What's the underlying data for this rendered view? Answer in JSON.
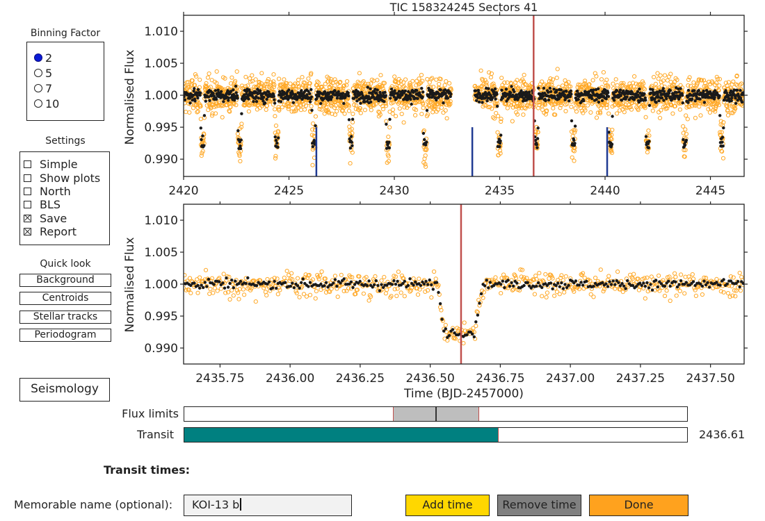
{
  "header": {
    "title": "TIC 158324245     Sectors 41"
  },
  "binning": {
    "title": "Binning Factor",
    "options": [
      {
        "label": "2",
        "selected": true
      },
      {
        "label": "5",
        "selected": false
      },
      {
        "label": "7",
        "selected": false
      },
      {
        "label": "10",
        "selected": false
      }
    ]
  },
  "settings": {
    "title": "Settings",
    "options": [
      {
        "label": "Simple",
        "checked": false
      },
      {
        "label": "Show plots",
        "checked": false
      },
      {
        "label": "North",
        "checked": false
      },
      {
        "label": "BLS",
        "checked": false
      },
      {
        "label": "Save",
        "checked": true
      },
      {
        "label": "Report",
        "checked": true
      }
    ]
  },
  "quicklook": {
    "title": "Quick look",
    "buttons": [
      "Background",
      "Centroids",
      "Stellar tracks",
      "Periodogram"
    ]
  },
  "seismology": {
    "label": "Seismology"
  },
  "sliders": {
    "flux_label": "Flux limits",
    "flux_fill_range": [
      0.415,
      0.585
    ],
    "flux_marker": 0.5,
    "transit_label": "Transit",
    "transit_value": "2436.61",
    "transit_fraction": 0.625
  },
  "transit_times": {
    "label": "Transit times:"
  },
  "name_field": {
    "label": "Memorable name (optional):",
    "value": "KOI-13 b"
  },
  "actions": {
    "add": "Add time",
    "remove": "Remove time",
    "done": "Done"
  },
  "colors": {
    "raw": "#ffa826",
    "binned": "#1a1a1a",
    "marker": "#c0504d",
    "transit_ticks": "#1f3a93",
    "teal": "#008080",
    "add": "#ffd700",
    "remove": "#808080",
    "done": "#ffa21e",
    "radio": "#0a1bd6"
  },
  "chart_data": [
    {
      "type": "scatter",
      "ylabel": "Normalised Flux",
      "xlim": [
        2420,
        2446.6
      ],
      "ylim": [
        0.9873,
        1.0125
      ],
      "xticks": [
        "2420",
        "2425",
        "2430",
        "2435",
        "2440",
        "2445"
      ],
      "yticks": [
        "1.010",
        "1.005",
        "1.000",
        "0.995",
        "0.990"
      ],
      "gap": [
        2432.7,
        2433.8
      ],
      "transit_epochs": [
        2420.9,
        2422.66,
        2424.42,
        2426.18,
        2427.94,
        2429.7,
        2431.46,
        2434.98,
        2436.74,
        2438.5,
        2440.26,
        2442.02,
        2443.78,
        2445.54
      ],
      "period": 1.76,
      "depth": 0.0075,
      "selected_time": 2436.61,
      "transit_markers": [
        2426.3,
        2433.7,
        2440.1
      ],
      "series": [
        {
          "name": "raw"
        },
        {
          "name": "binned"
        }
      ]
    },
    {
      "type": "scatter",
      "ylabel": "Normalised Flux",
      "xlabel": "Time (BJD-2457000)",
      "xlim": [
        2435.62,
        2437.62
      ],
      "ylim": [
        0.9875,
        1.0125
      ],
      "xticks": [
        "2435.75",
        "2436.00",
        "2436.25",
        "2436.50",
        "2436.75",
        "2437.00",
        "2437.25",
        "2437.50"
      ],
      "yticks": [
        "1.010",
        "1.005",
        "1.000",
        "0.995",
        "0.990"
      ],
      "transit_center": 2436.605,
      "transit_halfwidth": 0.07,
      "depth": 0.0075,
      "selected_time": 2436.61
    }
  ]
}
